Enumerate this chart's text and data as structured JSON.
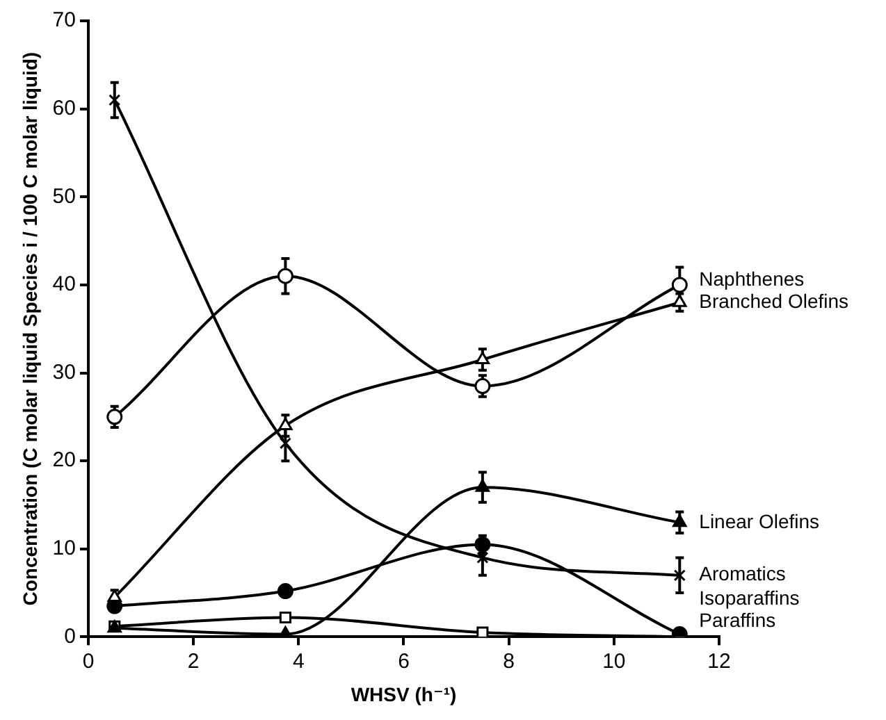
{
  "chart_data": {
    "type": "line",
    "xlabel": "WHSV (h⁻¹)",
    "ylabel": "Concentration (C molar liquid Species i / 100 C molar liquid)",
    "x": [
      0.5,
      3.75,
      7.5,
      11.25
    ],
    "xlim": [
      0,
      12
    ],
    "xticks": [
      0,
      2,
      4,
      6,
      8,
      10,
      12
    ],
    "ylim": [
      0,
      70
    ],
    "yticks": [
      0,
      10,
      20,
      30,
      40,
      50,
      60,
      70
    ],
    "grid": false,
    "legend": "right",
    "line_style": "solid",
    "series": [
      {
        "name": "Naphthenes",
        "color": "#000000",
        "marker": "circle",
        "colors": [
          "#ffffff",
          "#ffffff",
          "#ffffff",
          "#ffffff"
        ],
        "values": [
          25,
          41,
          28.5,
          40
        ],
        "errors": [
          1.2,
          2,
          1.2,
          2
        ]
      },
      {
        "name": "Branched Olefins",
        "color": "#000000",
        "marker": "triangle",
        "colors": [
          "#ffffff",
          "#ffffff",
          "#ffffff",
          "#ffffff"
        ],
        "values": [
          4.5,
          24,
          31.5,
          38
        ],
        "errors": [
          0.8,
          1.2,
          1.2,
          1
        ]
      },
      {
        "name": "Linear Olefins",
        "color": "#000000",
        "marker": "triangle",
        "values": [
          1,
          0.3,
          17,
          13
        ],
        "errors": [
          null,
          null,
          1.7,
          1.2
        ]
      },
      {
        "name": "Aromatics",
        "color": "#000000",
        "marker": "cross",
        "values": [
          61,
          22,
          9,
          7
        ],
        "errors": [
          2,
          2,
          2,
          2
        ]
      },
      {
        "name": "Isoparaffins",
        "color": "#000000",
        "marker": "circle",
        "values": [
          3.5,
          5.2,
          10.5,
          0.3
        ],
        "errors": [
          null,
          null,
          1,
          null
        ]
      },
      {
        "name": "Paraffins",
        "color": "#000000",
        "marker": "square",
        "colors": [
          "#ffffff",
          "#ffffff",
          "#ffffff",
          "#ffffff"
        ],
        "values": [
          1.2,
          2.2,
          0.5,
          0
        ],
        "errors": [
          null,
          null,
          null,
          null
        ]
      }
    ]
  }
}
